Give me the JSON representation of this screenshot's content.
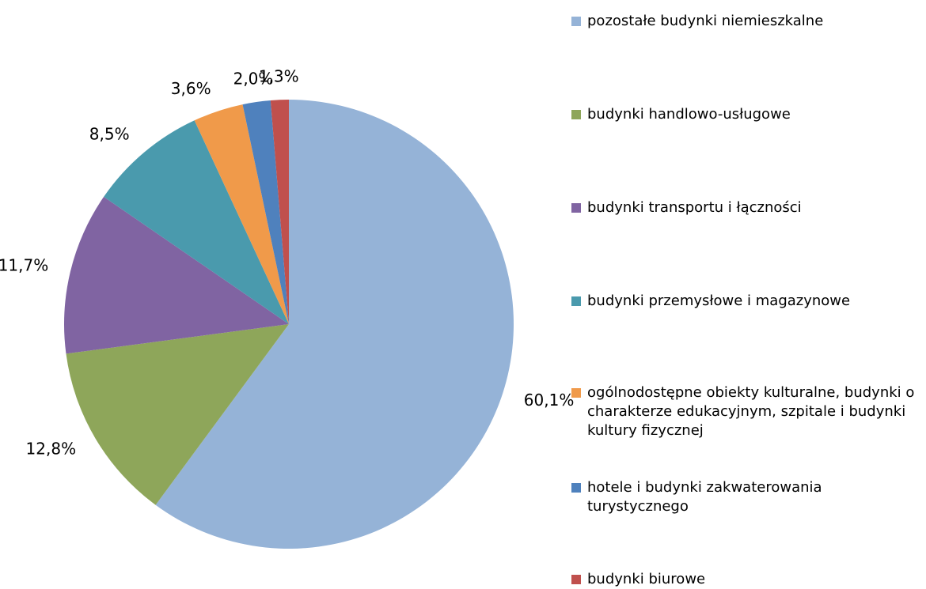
{
  "chart_data": {
    "type": "pie",
    "categories": [
      "pozostałe budynki niemieszkalne",
      "budynki handlowo-usługowe",
      "budynki transportu i łączności",
      "budynki przemysłowe i magazynowe",
      "ogólnodostępne obiekty kulturalne, budynki o charakterze edukacyjnym, szpitale i budynki kultury fizycznej",
      "hotele i budynki zakwaterowania turystycznego",
      "budynki biurowe"
    ],
    "values": [
      60.1,
      12.8,
      11.7,
      8.5,
      3.6,
      2.0,
      1.3
    ],
    "value_labels": [
      "60,1%",
      "12,8%",
      "11,7%",
      "8,5%",
      "3,6%",
      "2,0%",
      "1,3%"
    ],
    "colors": [
      "#95b3d7",
      "#8ea65a",
      "#8064a2",
      "#4a9aad",
      "#f09a4a",
      "#4f81bd",
      "#c0504d"
    ],
    "legend": "right"
  }
}
